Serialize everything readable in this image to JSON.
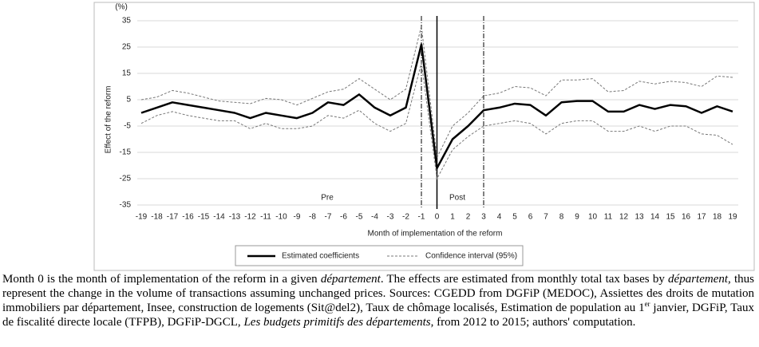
{
  "chart_data": {
    "type": "line",
    "y_unit": "(%)",
    "ylabel": "Effect of the reform",
    "xlabel": "Month of implementation of the reform",
    "xlim": [
      -19,
      19
    ],
    "ylim": [
      -35,
      35
    ],
    "yticks": [
      -35,
      -25,
      -15,
      -5,
      5,
      15,
      25,
      35
    ],
    "xticks": [
      -19,
      -18,
      -17,
      -16,
      -15,
      -14,
      -13,
      -12,
      -11,
      -10,
      -9,
      -8,
      -7,
      -6,
      -5,
      -4,
      -3,
      -2,
      -1,
      0,
      1,
      2,
      3,
      4,
      5,
      6,
      7,
      8,
      9,
      10,
      11,
      12,
      13,
      14,
      15,
      16,
      17,
      18,
      19
    ],
    "grid": true,
    "x": [
      -19,
      -18,
      -17,
      -16,
      -15,
      -14,
      -13,
      -12,
      -11,
      -10,
      -9,
      -8,
      -7,
      -6,
      -5,
      -4,
      -3,
      -2,
      -1,
      0,
      1,
      2,
      3,
      4,
      5,
      6,
      7,
      8,
      9,
      10,
      11,
      12,
      13,
      14,
      15,
      16,
      17,
      18,
      19
    ],
    "series": [
      {
        "name": "Estimated coefficients",
        "color": "#000000",
        "values": [
          0,
          2,
          4,
          3,
          2,
          1,
          0,
          -2,
          0,
          -1,
          -2,
          0,
          4,
          3,
          7,
          2,
          -1,
          2,
          26,
          -21,
          -10,
          -5,
          1,
          2,
          3.5,
          3,
          -1,
          4,
          4.5,
          4.5,
          0.5,
          0.5,
          3,
          1.5,
          3,
          2.5,
          0,
          2.5,
          0.5
        ]
      }
    ],
    "confidence_interval": {
      "name": "Confidence interval (95%)",
      "color": "#777777",
      "upper": [
        5,
        6,
        8.5,
        7.5,
        6,
        4.5,
        4,
        3.5,
        5.5,
        5,
        3,
        5.5,
        8,
        9,
        13,
        9,
        5,
        9,
        33,
        -17,
        -5,
        0,
        6.5,
        7.5,
        10,
        9.5,
        6.5,
        12.5,
        12.5,
        13,
        8,
        8.5,
        12,
        11,
        12,
        11.5,
        10,
        14,
        13.5
      ],
      "lower": [
        -4,
        -1,
        0.5,
        -1,
        -2,
        -3,
        -3,
        -6,
        -4,
        -6,
        -6,
        -5,
        -1,
        -2,
        1,
        -4,
        -7,
        -4,
        19,
        -25,
        -14,
        -9,
        -5,
        -4,
        -3,
        -4,
        -8,
        -4,
        -3,
        -3,
        -7,
        -7,
        -5,
        -7,
        -5,
        -5,
        -8,
        -8.5,
        -12
      ]
    },
    "reference_lines": [
      {
        "x": -1,
        "style": "dashdot"
      },
      {
        "x": 0,
        "style": "solid"
      },
      {
        "x": 3,
        "style": "dashdot"
      }
    ],
    "annotations": [
      "Pre",
      "Post"
    ],
    "legend": "bottom"
  },
  "caption": [
    {
      "text": "Month 0 is the month of implementation of the reform in a given ",
      "style": "normal"
    },
    {
      "text": "département",
      "style": "italic"
    },
    {
      "text": ". The effects are estimated from monthly total tax bases by ",
      "style": "normal"
    },
    {
      "text": "département,",
      "style": "italic"
    },
    {
      "text": " thus represent the change in the volume of transactions assuming unchanged prices. Sources: CGEDD from DGFiP (MEDOC), Assiettes des droits de mutation immobiliers par département, Insee, construction de logements (Sit@del2), Taux de chômage localisés, Estimation de population au 1",
      "style": "normal"
    },
    {
      "text": "er",
      "style": "sup"
    },
    {
      "text": " janvier, DGFiP, Taux de fiscalité directe locale (TFPB), DGFiP-DGCL, ",
      "style": "normal"
    },
    {
      "text": "Les budgets primitifs des départements",
      "style": "italic"
    },
    {
      "text": ", from 2012 to 2015; authors' computation.",
      "style": "normal"
    }
  ]
}
